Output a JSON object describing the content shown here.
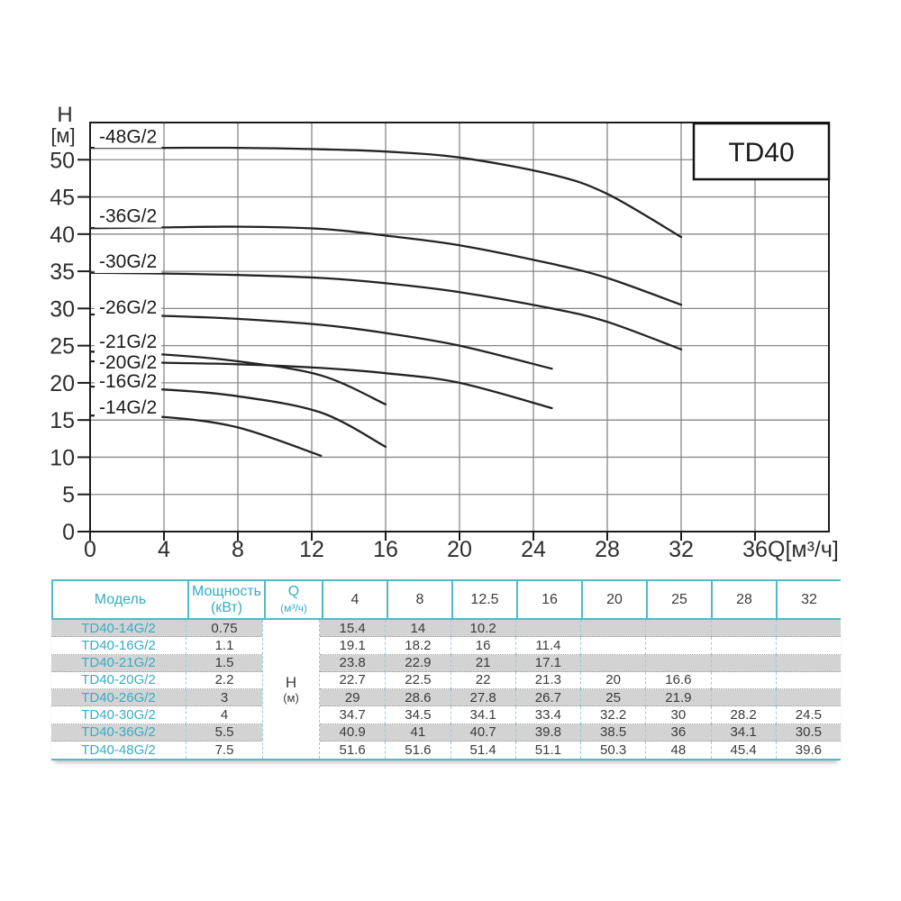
{
  "chart": {
    "title_box": "TD40",
    "y_axis_title_line1": "H",
    "y_axis_title_line2": "[м]",
    "x_axis_unit": "Q[м³/ч]"
  },
  "chart_data": {
    "type": "line",
    "title": "TD40",
    "xlabel": "Q[м³/ч]",
    "ylabel": "H [м]",
    "xlim": [
      0,
      40
    ],
    "ylim": [
      0,
      55
    ],
    "grid": true,
    "xticks": [
      0,
      4,
      8,
      12,
      16,
      20,
      24,
      28,
      32,
      36
    ],
    "yticks": [
      0,
      5,
      10,
      15,
      20,
      25,
      30,
      35,
      40,
      45,
      50
    ],
    "series": [
      {
        "name": "-48G/2",
        "label_h": 52.3,
        "points": [
          [
            0,
            51.6
          ],
          [
            4,
            51.6
          ],
          [
            8,
            51.6
          ],
          [
            12.5,
            51.4
          ],
          [
            16,
            51.1
          ],
          [
            20,
            50.3
          ],
          [
            25,
            48
          ],
          [
            28,
            45.4
          ],
          [
            32,
            39.6
          ]
        ]
      },
      {
        "name": "-36G/2",
        "label_h": 41.6,
        "points": [
          [
            0,
            40.8
          ],
          [
            4,
            40.9
          ],
          [
            8,
            41
          ],
          [
            12.5,
            40.7
          ],
          [
            16,
            39.8
          ],
          [
            20,
            38.5
          ],
          [
            25,
            36
          ],
          [
            28,
            34.1
          ],
          [
            32,
            30.5
          ]
        ]
      },
      {
        "name": "-30G/2",
        "label_h": 35.5,
        "points": [
          [
            0,
            34.8
          ],
          [
            4,
            34.7
          ],
          [
            8,
            34.5
          ],
          [
            12.5,
            34.1
          ],
          [
            16,
            33.4
          ],
          [
            20,
            32.2
          ],
          [
            25,
            30
          ],
          [
            28,
            28.2
          ],
          [
            32,
            24.5
          ]
        ]
      },
      {
        "name": "-26G/2",
        "label_h": 29.3,
        "points": [
          [
            0,
            29.2
          ],
          [
            4,
            29
          ],
          [
            8,
            28.6
          ],
          [
            12.5,
            27.8
          ],
          [
            16,
            26.7
          ],
          [
            20,
            25
          ],
          [
            25,
            21.9
          ]
        ]
      },
      {
        "name": "-21G/2",
        "label_h": 24.7,
        "points": [
          [
            0,
            24.2
          ],
          [
            4,
            23.8
          ],
          [
            8,
            22.9
          ],
          [
            12.5,
            21
          ],
          [
            16,
            17.1
          ]
        ]
      },
      {
        "name": "-20G/2",
        "label_h": 21.9,
        "points": [
          [
            0,
            22.9
          ],
          [
            4,
            22.7
          ],
          [
            8,
            22.5
          ],
          [
            12.5,
            22
          ],
          [
            16,
            21.3
          ],
          [
            20,
            20
          ],
          [
            25,
            16.6
          ]
        ]
      },
      {
        "name": "-16G/2",
        "label_h": 19.4,
        "points": [
          [
            0,
            19.5
          ],
          [
            4,
            19.1
          ],
          [
            8,
            18.2
          ],
          [
            12.5,
            16
          ],
          [
            16,
            11.4
          ]
        ]
      },
      {
        "name": "-14G/2",
        "label_h": 15.9,
        "points": [
          [
            0,
            15.6
          ],
          [
            4,
            15.4
          ],
          [
            8,
            14
          ],
          [
            12.5,
            10.2
          ]
        ]
      }
    ]
  },
  "table": {
    "headers": {
      "model": "Модель",
      "power_line1": "Мощность",
      "power_line2": "(кВт)",
      "q_line1": "Q",
      "q_line2": "(м³/ч)"
    },
    "flow_columns": [
      "4",
      "8",
      "12.5",
      "16",
      "20",
      "25",
      "28",
      "32"
    ],
    "merged_cell": {
      "line1": "Н",
      "line2": "(м)"
    },
    "rows": [
      {
        "model": "TD40-14G/2",
        "power": "0.75",
        "values": [
          "15.4",
          "14",
          "10.2",
          "",
          "",
          "",
          "",
          ""
        ]
      },
      {
        "model": "TD40-16G/2",
        "power": "1.1",
        "values": [
          "19.1",
          "18.2",
          "16",
          "11.4",
          "",
          "",
          "",
          ""
        ]
      },
      {
        "model": "TD40-21G/2",
        "power": "1.5",
        "values": [
          "23.8",
          "22.9",
          "21",
          "17.1",
          "",
          "",
          "",
          ""
        ]
      },
      {
        "model": "TD40-20G/2",
        "power": "2.2",
        "values": [
          "22.7",
          "22.5",
          "22",
          "21.3",
          "20",
          "16.6",
          "",
          ""
        ]
      },
      {
        "model": "TD40-26G/2",
        "power": "3",
        "values": [
          "29",
          "28.6",
          "27.8",
          "26.7",
          "25",
          "21.9",
          "",
          ""
        ]
      },
      {
        "model": "TD40-30G/2",
        "power": "4",
        "values": [
          "34.7",
          "34.5",
          "34.1",
          "33.4",
          "32.2",
          "30",
          "28.2",
          "24.5"
        ]
      },
      {
        "model": "TD40-36G/2",
        "power": "5.5",
        "values": [
          "40.9",
          "41",
          "40.7",
          "39.8",
          "38.5",
          "36",
          "34.1",
          "30.5"
        ]
      },
      {
        "model": "TD40-48G/2",
        "power": "7.5",
        "values": [
          "51.6",
          "51.6",
          "51.4",
          "51.1",
          "50.3",
          "48",
          "45.4",
          "39.6"
        ]
      }
    ]
  },
  "colors": {
    "teal_border": "#52b9c6",
    "teal_text": "#35adc6",
    "row_gray": "#d3d3d3",
    "value_text": "#3b3b3b",
    "grid_gray": "#878787",
    "ink": "#1c1c1c"
  }
}
